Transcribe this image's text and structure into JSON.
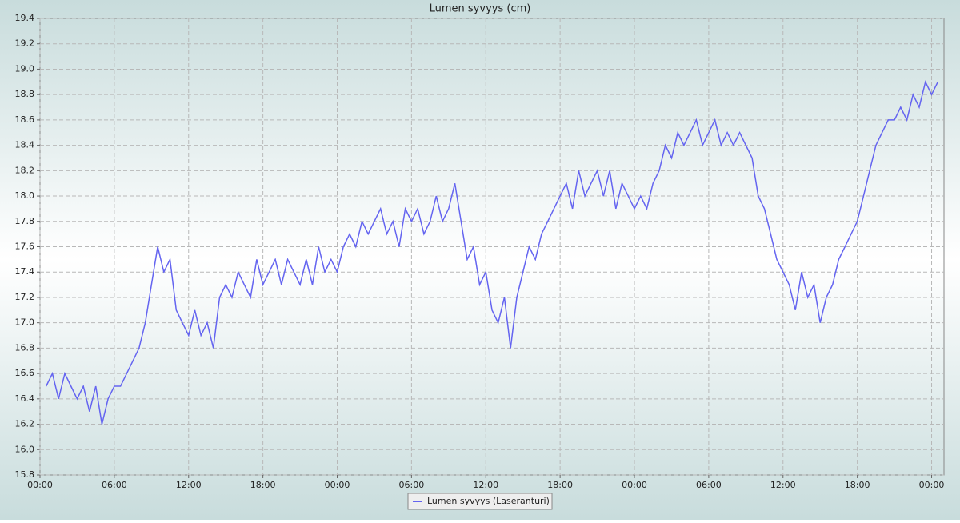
{
  "chart_data": {
    "type": "line",
    "title": "Lumen syvyys (cm)",
    "x": [
      0.5,
      1,
      1.5,
      2,
      2.5,
      3,
      3.5,
      4,
      4.5,
      5,
      5.5,
      6,
      6.5,
      7,
      7.5,
      8,
      8.5,
      9,
      9.5,
      10,
      10.5,
      11,
      11.5,
      12,
      12.5,
      13,
      13.5,
      14,
      14.5,
      15,
      15.5,
      16,
      16.5,
      17,
      17.5,
      18,
      18.5,
      19,
      19.5,
      20,
      20.5,
      21,
      21.5,
      22,
      22.5,
      23,
      23.5,
      24,
      24.5,
      25,
      25.5,
      26,
      26.5,
      27,
      27.5,
      28,
      28.5,
      29,
      29.5,
      30,
      30.5,
      31,
      31.5,
      32,
      32.5,
      33,
      33.5,
      34,
      34.5,
      35,
      35.5,
      36,
      36.5,
      37,
      37.5,
      38,
      38.5,
      39,
      39.5,
      40,
      40.5,
      41,
      41.5,
      42,
      42.5,
      43,
      43.5,
      44,
      44.5,
      45,
      45.5,
      46,
      46.5,
      47,
      47.5,
      48,
      48.5,
      49,
      49.5,
      50,
      50.5,
      51,
      51.5,
      52,
      52.5,
      53,
      53.5,
      54,
      54.5,
      55,
      55.5,
      56,
      56.5,
      57,
      57.5,
      58,
      58.5,
      59,
      59.5,
      60,
      60.5,
      61,
      61.5,
      62,
      62.5,
      63,
      63.5,
      64,
      64.5,
      65,
      65.5,
      66,
      66.5,
      67,
      67.5,
      68,
      68.5,
      69,
      69.5,
      70,
      70.5,
      71,
      71.5,
      72,
      72.5
    ],
    "series": [
      {
        "name": "Lumen syvyys (Laseranturi)",
        "color": "#6464f0",
        "values": [
          16.5,
          16.6,
          16.4,
          16.6,
          16.5,
          16.4,
          16.5,
          16.3,
          16.5,
          16.2,
          16.4,
          16.5,
          16.5,
          16.6,
          16.7,
          16.8,
          17.0,
          17.3,
          17.6,
          17.4,
          17.5,
          17.1,
          17.0,
          16.9,
          17.1,
          16.9,
          17.0,
          16.8,
          17.2,
          17.3,
          17.2,
          17.4,
          17.3,
          17.2,
          17.5,
          17.3,
          17.4,
          17.5,
          17.3,
          17.5,
          17.4,
          17.3,
          17.5,
          17.3,
          17.6,
          17.4,
          17.5,
          17.4,
          17.6,
          17.7,
          17.6,
          17.8,
          17.7,
          17.8,
          17.9,
          17.7,
          17.8,
          17.6,
          17.9,
          17.8,
          17.9,
          17.7,
          17.8,
          18.0,
          17.8,
          17.9,
          18.1,
          17.8,
          17.5,
          17.6,
          17.3,
          17.4,
          17.1,
          17.0,
          17.2,
          16.8,
          17.2,
          17.4,
          17.6,
          17.5,
          17.7,
          17.8,
          17.9,
          18.0,
          18.1,
          17.9,
          18.2,
          18.0,
          18.1,
          18.2,
          18.0,
          18.2,
          17.9,
          18.1,
          18.0,
          17.9,
          18.0,
          17.9,
          18.1,
          18.2,
          18.4,
          18.3,
          18.5,
          18.4,
          18.5,
          18.6,
          18.4,
          18.5,
          18.6,
          18.4,
          18.5,
          18.4,
          18.5,
          18.4,
          18.3,
          18.0,
          17.9,
          17.7,
          17.5,
          17.4,
          17.3,
          17.1,
          17.4,
          17.2,
          17.3,
          17.0,
          17.2,
          17.3,
          17.5,
          17.6,
          17.7,
          17.8,
          18.0,
          18.2,
          18.4,
          18.5,
          18.6,
          18.6,
          18.7,
          18.6,
          18.8,
          18.7,
          18.9,
          18.8,
          18.9
        ]
      }
    ],
    "xlim": [
      0,
      73
    ],
    "xticks": [
      {
        "value": 0,
        "label": "00:00"
      },
      {
        "value": 6,
        "label": "06:00"
      },
      {
        "value": 12,
        "label": "12:00"
      },
      {
        "value": 18,
        "label": "18:00"
      },
      {
        "value": 24,
        "label": "00:00"
      },
      {
        "value": 30,
        "label": "06:00"
      },
      {
        "value": 36,
        "label": "12:00"
      },
      {
        "value": 42,
        "label": "18:00"
      },
      {
        "value": 48,
        "label": "00:00"
      },
      {
        "value": 54,
        "label": "06:00"
      },
      {
        "value": 60,
        "label": "12:00"
      },
      {
        "value": 66,
        "label": "18:00"
      },
      {
        "value": 72,
        "label": "00:00"
      }
    ],
    "ylim": [
      15.8,
      19.4
    ],
    "yticks": [
      15.8,
      {
        "value": 16,
        "label": "16.0"
      },
      16.2,
      16.4,
      16.6,
      16.8,
      {
        "value": 17,
        "label": "17.0"
      },
      17.2,
      17.4,
      17.6,
      17.8,
      {
        "value": 18,
        "label": "18.0"
      },
      18.2,
      18.4,
      18.6,
      18.8,
      {
        "value": 19,
        "label": "19.0"
      },
      19.2,
      19.4
    ],
    "grid": true,
    "legend": "bottom"
  }
}
